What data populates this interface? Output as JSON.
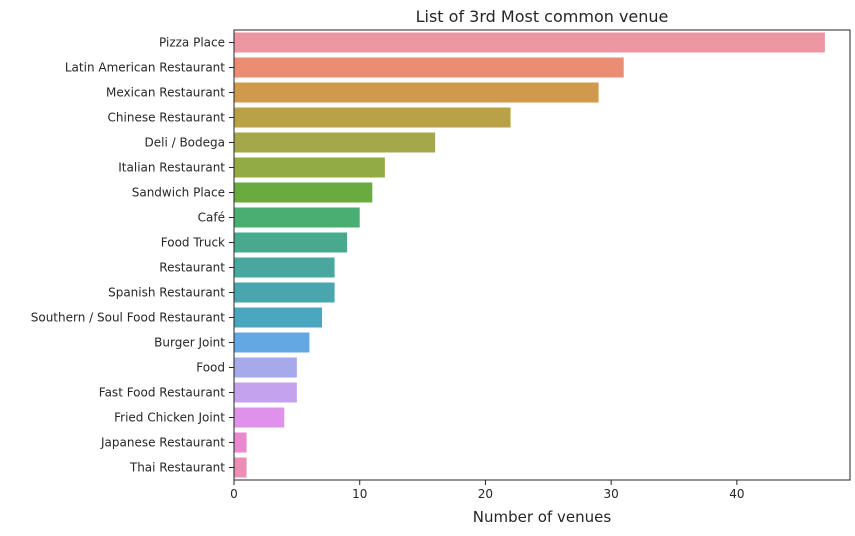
{
  "chart_data": {
    "type": "bar",
    "orientation": "horizontal",
    "title": "List of 3rd Most common venue",
    "xlabel": "Number of venues",
    "ylabel": "",
    "xlim": [
      0,
      49
    ],
    "xticks": [
      0,
      10,
      20,
      30,
      40
    ],
    "grid": false,
    "categories": [
      "Pizza Place",
      "Latin American Restaurant",
      "Mexican Restaurant",
      "Chinese Restaurant",
      "Deli / Bodega",
      "Italian Restaurant",
      "Sandwich Place",
      "Café",
      "Food Truck",
      "Restaurant",
      "Spanish Restaurant",
      "Southern / Soul Food Restaurant",
      "Burger Joint",
      "Food",
      "Fast Food Restaurant",
      "Fried Chicken Joint",
      "Japanese Restaurant",
      "Thai Restaurant"
    ],
    "values": [
      47,
      31,
      29,
      22,
      16,
      12,
      11,
      10,
      9,
      8,
      8,
      7,
      6,
      5,
      5,
      4,
      1,
      1
    ],
    "colors": [
      "#ec96a1",
      "#eb8d72",
      "#cf9a4d",
      "#b9a246",
      "#a5a84a",
      "#92ab45",
      "#6aab40",
      "#4aae72",
      "#47a98e",
      "#48a89f",
      "#49a6ad",
      "#4aa6bf",
      "#63a8e3",
      "#a6aaea",
      "#c4a2ec",
      "#e091ea",
      "#e98ad1",
      "#ec8eb6"
    ]
  }
}
